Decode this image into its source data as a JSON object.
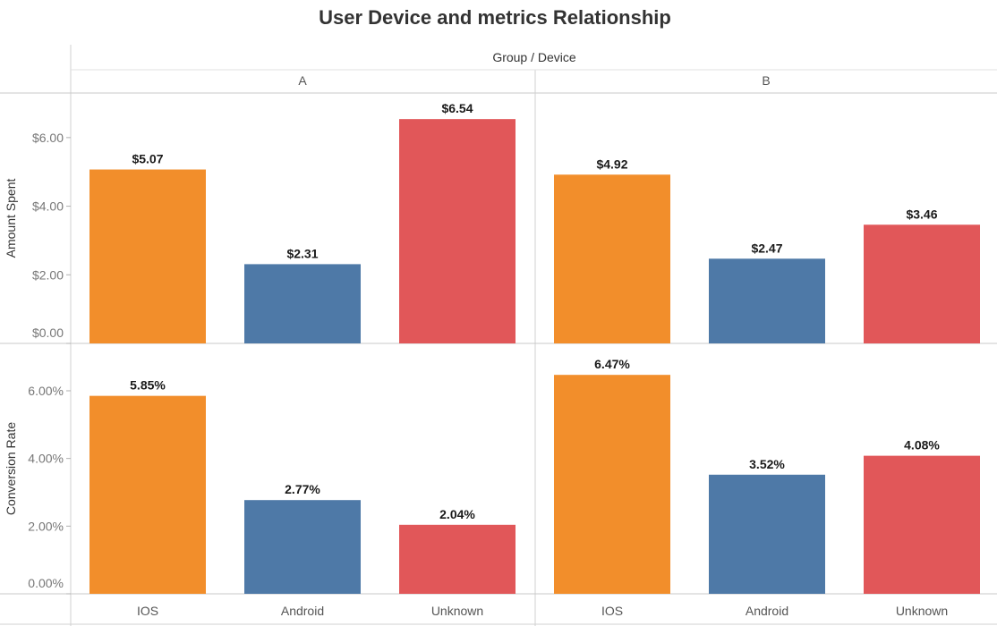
{
  "chart_data": {
    "type": "bar",
    "title": "User Device and metrics Relationship",
    "column_header_label": "Group / Device",
    "groups": [
      "A",
      "B"
    ],
    "categories": [
      "IOS",
      "Android",
      "Unknown"
    ],
    "colors": {
      "IOS": "#F28E2B",
      "Android": "#4E79A7",
      "Unknown": "#E15759"
    },
    "grid": false,
    "panels": [
      {
        "metric": "Amount Spent",
        "ylabel": "Amount Spent",
        "ylim": [
          0,
          7.3
        ],
        "ticks": [
          {
            "value": 0,
            "label": "$0.00"
          },
          {
            "value": 2,
            "label": "$2.00"
          },
          {
            "value": 4,
            "label": "$4.00"
          },
          {
            "value": 6,
            "label": "$6.00"
          }
        ],
        "series": [
          {
            "group": "A",
            "values": [
              5.07,
              2.31,
              6.54
            ],
            "labels": [
              "$5.07",
              "$2.31",
              "$6.54"
            ]
          },
          {
            "group": "B",
            "values": [
              4.92,
              2.47,
              3.46
            ],
            "labels": [
              "$4.92",
              "$2.47",
              "$3.46"
            ]
          }
        ]
      },
      {
        "metric": "Conversion Rate",
        "ylabel": "Conversion Rate",
        "ylim": [
          0,
          7.4
        ],
        "ticks": [
          {
            "value": 0,
            "label": "0.00%"
          },
          {
            "value": 2,
            "label": "2.00%"
          },
          {
            "value": 4,
            "label": "4.00%"
          },
          {
            "value": 6,
            "label": "6.00%"
          }
        ],
        "series": [
          {
            "group": "A",
            "values": [
              5.85,
              2.77,
              2.04
            ],
            "labels": [
              "5.85%",
              "2.77%",
              "2.04%"
            ]
          },
          {
            "group": "B",
            "values": [
              6.47,
              3.52,
              4.08
            ],
            "labels": [
              "6.47%",
              "3.52%",
              "4.08%"
            ]
          }
        ]
      }
    ]
  }
}
